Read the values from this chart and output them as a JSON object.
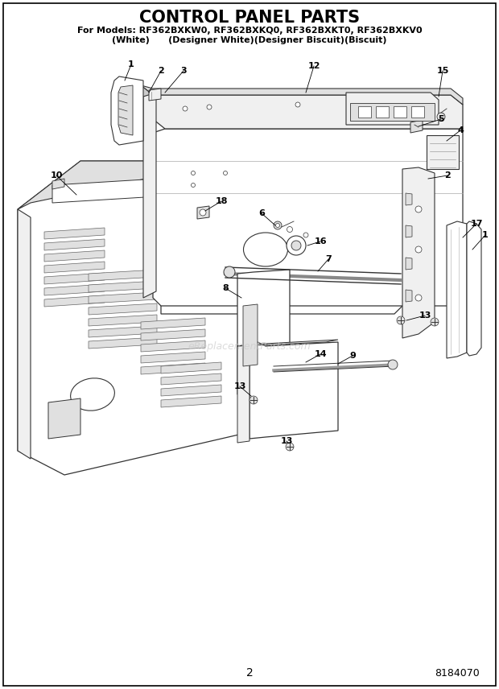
{
  "title": "CONTROL PANEL PARTS",
  "subtitle_line1": "For Models: RF362BXKW0, RF362BXKQ0, RF362BXKT0, RF362BXKV0",
  "subtitle_line2": "(White)      (Designer White)(Designer Biscuit)(Biscuit)",
  "page_number": "2",
  "doc_number": "8184070",
  "watermark": "eReplacementParts.com",
  "bg_color": "#ffffff",
  "fill_light": "#f0f0f0",
  "fill_mid": "#e0e0e0",
  "fill_dark": "#cccccc",
  "edge_color": "#333333",
  "line_color": "#111111"
}
